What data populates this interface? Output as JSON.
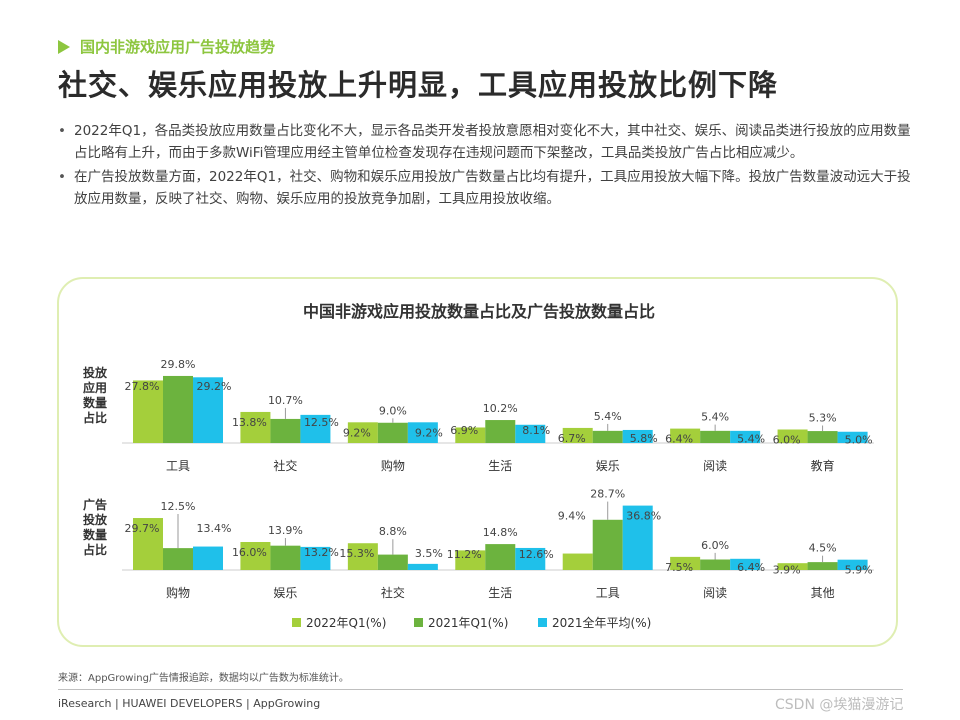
{
  "header": {
    "section_label": "国内非游戏应用广告投放趋势",
    "title": "社交、娱乐应用投放上升明显，工具应用投放比例下降"
  },
  "bullets": [
    "2022年Q1，各品类投放应用数量占比变化不大，显示各品类开发者投放意愿相对变化不大，其中社交、娱乐、阅读品类进行投放的应用数量占比略有上升，而由于多款WiFi管理应用经主管单位检查发现存在违规问题而下架整改，工具品类投放广告占比相应减少。",
    "在广告投放数量方面，2022年Q1，社交、购物和娱乐应用投放广告数量占比均有提升，工具应用投放大幅下降。投放广告数量波动远大于投放应用数量，反映了社交、购物、娱乐应用的投放竞争加剧，工具应用投放收缩。"
  ],
  "colors": {
    "accent": "#8dc63f",
    "series": [
      "#a4cf3b",
      "#6cb33e",
      "#1fc0ea"
    ]
  },
  "chart_data": {
    "type": "bar",
    "title": "中国非游戏应用投放数量占比及广告投放数量占比",
    "legend": [
      "2022年Q1(%)",
      "2021年Q1(%)",
      "2021全年平均(%)"
    ],
    "legend_position": "bottom",
    "panels": [
      {
        "ylabel": "投放应用数量占比",
        "categories": [
          "工具",
          "社交",
          "购物",
          "生活",
          "娱乐",
          "阅读",
          "教育"
        ],
        "series": [
          {
            "name": "2022年Q1(%)",
            "values": [
              27.8,
              13.8,
              9.2,
              6.9,
              6.7,
              6.4,
              6.0
            ],
            "labels": [
              "27.8%",
              "13.8%",
              "9.2%",
              "6.9%",
              "6.7%",
              "6.4%",
              "6.0%"
            ]
          },
          {
            "name": "2021年Q1(%)",
            "values": [
              29.8,
              10.7,
              9.0,
              10.2,
              5.4,
              5.4,
              5.3
            ],
            "labels": [
              "29.8%",
              "10.7%",
              "9.0%",
              "10.2%",
              "5.4%",
              "5.4%",
              "5.3%"
            ]
          },
          {
            "name": "2021全年平均(%)",
            "values": [
              29.2,
              12.5,
              9.2,
              8.1,
              5.8,
              5.4,
              5.0
            ],
            "labels": [
              "29.2%",
              "12.5%",
              "9.2%",
              "8.1%",
              "5.8%",
              "5.4%",
              "5.0%"
            ]
          }
        ]
      },
      {
        "ylabel": "广告投放数量占比",
        "categories": [
          "购物",
          "娱乐",
          "社交",
          "生活",
          "工具",
          "阅读",
          "其他"
        ],
        "series": [
          {
            "name": "2022年Q1(%)",
            "values": [
              29.7,
              16.0,
              15.3,
              11.2,
              9.4,
              7.5,
              3.9
            ],
            "labels": [
              "29.7%",
              "16.0%",
              "15.3%",
              "11.2%",
              "9.4%",
              "7.5%",
              "3.9%"
            ]
          },
          {
            "name": "2021年Q1(%)",
            "values": [
              12.5,
              13.9,
              8.8,
              14.8,
              28.7,
              6.0,
              4.5
            ],
            "labels": [
              "12.5%",
              "13.9%",
              "8.8%",
              "14.8%",
              "28.7%",
              "6.0%",
              "4.5%"
            ]
          },
          {
            "name": "2021全年平均(%)",
            "values": [
              13.4,
              13.2,
              3.5,
              12.6,
              36.8,
              6.4,
              5.9
            ],
            "labels": [
              "13.4%",
              "13.2%",
              "3.5%",
              "12.6%",
              "36.8%",
              "6.4%",
              "5.9%"
            ]
          }
        ]
      }
    ]
  },
  "footnote": "来源：AppGrowing广告情报追踪，数据均以广告数为标准统计。",
  "footer": "iResearch | HUAWEI DEVELOPERS | AppGrowing",
  "watermark": "CSDN @埃猫漫游记"
}
